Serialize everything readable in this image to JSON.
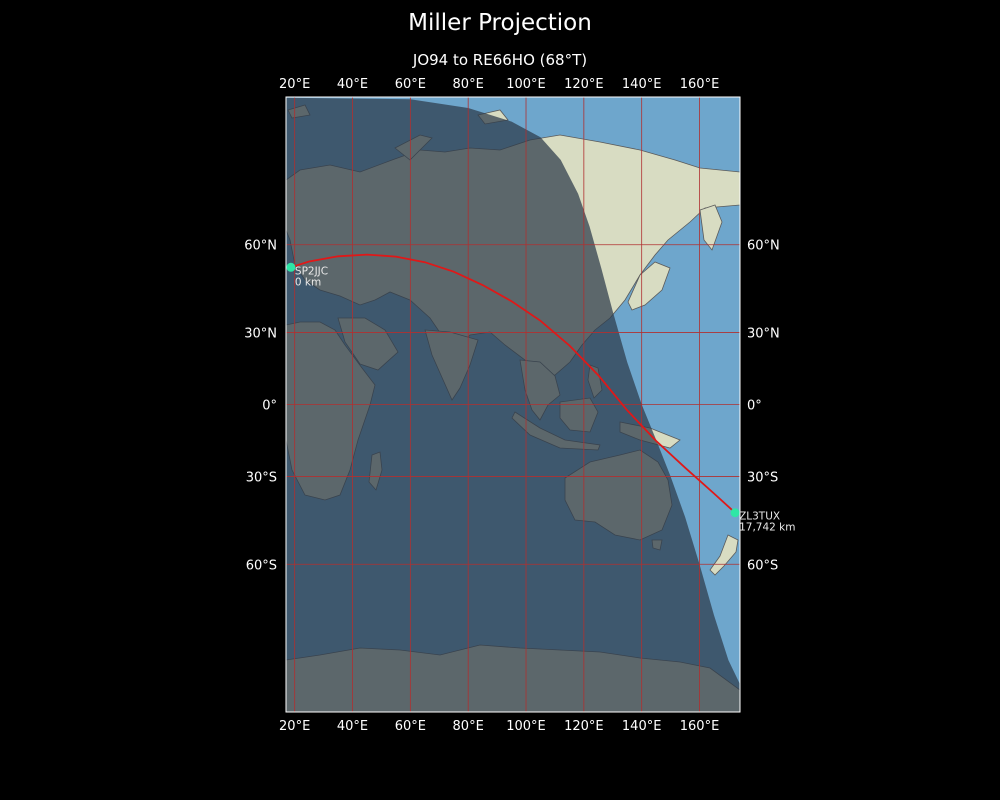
{
  "title": "Miller Projection",
  "subtitle": "JO94 to RE66HO (68°T)",
  "colors": {
    "background": "#000000",
    "ocean": "#6ea6cc",
    "land": "#d8dcc2",
    "night_overlay": "#2c3a4a",
    "grid": "#b03030",
    "path": "#e01818",
    "station": "#2ee6a6"
  },
  "map": {
    "lon_range": [
      17,
      174
    ],
    "lat_range": [
      -90,
      90
    ],
    "x_ticks": [
      {
        "lon": 20,
        "label": "20°E"
      },
      {
        "lon": 40,
        "label": "40°E"
      },
      {
        "lon": 60,
        "label": "60°E"
      },
      {
        "lon": 80,
        "label": "80°E"
      },
      {
        "lon": 100,
        "label": "100°E"
      },
      {
        "lon": 120,
        "label": "120°E"
      },
      {
        "lon": 140,
        "label": "140°E"
      },
      {
        "lon": 160,
        "label": "160°E"
      }
    ],
    "y_ticks": [
      {
        "lat": 60,
        "label": "60°N"
      },
      {
        "lat": 30,
        "label": "30°N"
      },
      {
        "lat": 0,
        "label": "0°"
      },
      {
        "lat": -30,
        "label": "30°S"
      },
      {
        "lat": -60,
        "label": "60°S"
      }
    ],
    "stations": [
      {
        "call": "SP2JJC",
        "dist": "0 km",
        "lon": 18.7,
        "lat": 53.2
      },
      {
        "call": "ZL3TUX",
        "dist": "17,742 km",
        "lon": 172.3,
        "lat": -43.5
      }
    ],
    "path": [
      [
        18.7,
        53.2
      ],
      [
        25,
        55
      ],
      [
        35,
        56.6
      ],
      [
        45,
        57.1
      ],
      [
        55,
        56.5
      ],
      [
        65,
        54.8
      ],
      [
        75,
        51.8
      ],
      [
        85,
        47.4
      ],
      [
        95,
        41.7
      ],
      [
        105,
        34.5
      ],
      [
        115,
        24.8
      ],
      [
        125,
        12.5
      ],
      [
        135,
        -2.5
      ],
      [
        145,
        -15.5
      ],
      [
        155,
        -26.5
      ],
      [
        165,
        -36.5
      ],
      [
        172.3,
        -43.5
      ]
    ],
    "night_boundary": [
      [
        17,
        89.9
      ],
      [
        60,
        89.7
      ],
      [
        80,
        88.5
      ],
      [
        95,
        86.5
      ],
      [
        105,
        84
      ],
      [
        112,
        80
      ],
      [
        118,
        73
      ],
      [
        122,
        65
      ],
      [
        126,
        53
      ],
      [
        130,
        38
      ],
      [
        135,
        18
      ],
      [
        140,
        0
      ],
      [
        145,
        -15
      ],
      [
        150,
        -30
      ],
      [
        155,
        -45
      ],
      [
        160,
        -60
      ],
      [
        165,
        -73
      ],
      [
        170,
        -82
      ],
      [
        174,
        -86
      ]
    ]
  }
}
